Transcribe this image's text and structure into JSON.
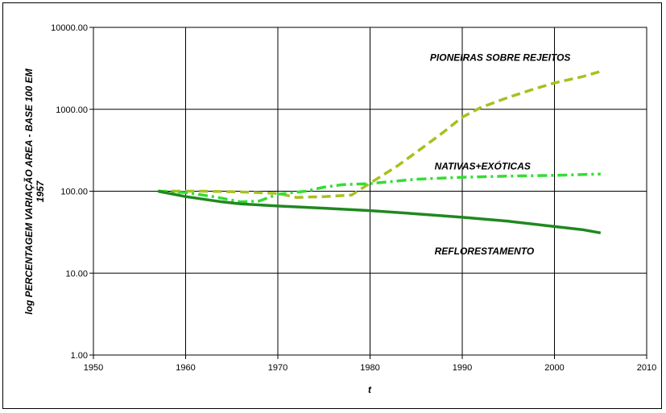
{
  "chart_data": {
    "type": "line",
    "title": "",
    "xlabel": "t",
    "ylabel_lines": [
      "log PERCENTAGEM VARIAÇÃO AREA - BASE 100 EM",
      "1957"
    ],
    "xlim": [
      1950,
      2010
    ],
    "ylim": [
      1,
      10000
    ],
    "y_scale": "log",
    "grid": true,
    "legend": "none",
    "x_ticks": [
      "1950",
      "1960",
      "1970",
      "1980",
      "1990",
      "2000",
      "2010"
    ],
    "x_tick_values": [
      1950,
      1960,
      1970,
      1980,
      1990,
      2000,
      2010
    ],
    "y_ticks": [
      "1.00",
      "10.00",
      "100.00",
      "1000.00",
      "10000.00"
    ],
    "y_tick_values": [
      1,
      10,
      100,
      1000,
      10000
    ],
    "series": [
      {
        "name": "PIONEIRAS SOBRE REJEITOS",
        "color": "#a8c020",
        "style": "dashed",
        "points": [
          [
            1957,
            100
          ],
          [
            1962,
            100
          ],
          [
            1966,
            98
          ],
          [
            1970,
            94
          ],
          [
            1972,
            84
          ],
          [
            1975,
            86
          ],
          [
            1978,
            90
          ],
          [
            1980,
            125
          ],
          [
            1983,
            205
          ],
          [
            1986,
            360
          ],
          [
            1988,
            530
          ],
          [
            1990,
            800
          ],
          [
            1992,
            1050
          ],
          [
            1995,
            1400
          ],
          [
            1998,
            1800
          ],
          [
            2000,
            2100
          ],
          [
            2003,
            2500
          ],
          [
            2005,
            2900
          ]
        ],
        "label_x": 1986.5,
        "label_y": 3900
      },
      {
        "name": "NATIVAS+EXÓTICAS",
        "display_label": "NATIVAS+EXÓTICAS",
        "color": "#33dd33",
        "style": "dashdot",
        "points": [
          [
            1957,
            100
          ],
          [
            1960,
            96
          ],
          [
            1963,
            86
          ],
          [
            1966,
            74
          ],
          [
            1968,
            76
          ],
          [
            1970,
            92
          ],
          [
            1973,
            100
          ],
          [
            1975,
            112
          ],
          [
            1977,
            120
          ],
          [
            1980,
            124
          ],
          [
            1985,
            140
          ],
          [
            1990,
            148
          ],
          [
            1995,
            153
          ],
          [
            2000,
            156
          ],
          [
            2005,
            162
          ]
        ],
        "label_x": 1987,
        "label_y": 185
      },
      {
        "name": "REFLORESTAMENTO",
        "color": "#208820",
        "style": "solid",
        "points": [
          [
            1957,
            100
          ],
          [
            1960,
            86
          ],
          [
            1964,
            74
          ],
          [
            1966,
            70
          ],
          [
            1970,
            66
          ],
          [
            1975,
            62
          ],
          [
            1980,
            58
          ],
          [
            1985,
            53
          ],
          [
            1990,
            48
          ],
          [
            1995,
            43
          ],
          [
            2000,
            37
          ],
          [
            2003,
            34
          ],
          [
            2005,
            31
          ]
        ],
        "label_x": 1987,
        "label_y": 17
      }
    ]
  }
}
